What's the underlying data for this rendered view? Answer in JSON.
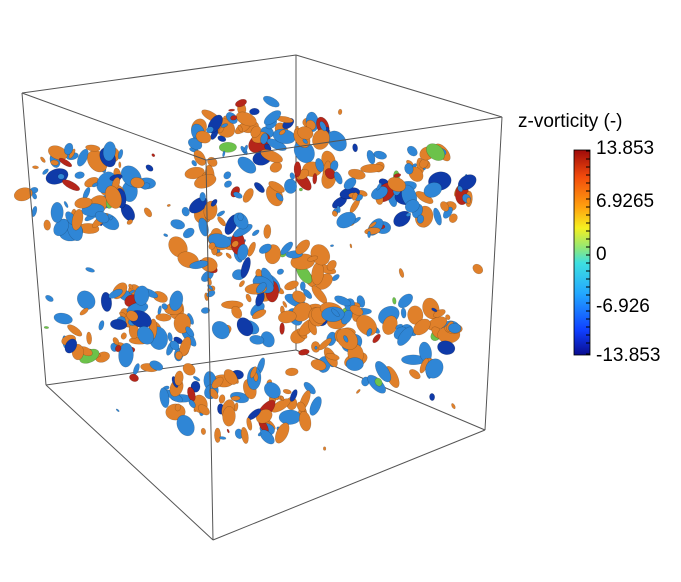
{
  "legend": {
    "title": "z-vorticity (-)",
    "max_label": "13.853",
    "upper_label": "6.9265",
    "mid_label": "0",
    "lower_label": "-6.926",
    "min_label": "-13.853",
    "colors": [
      "#0a0c8f",
      "#0f3fff",
      "#23a8ff",
      "#3ee0e0",
      "#8ee87a",
      "#f5f020",
      "#ffa20f",
      "#f24b0c",
      "#9e0a0a"
    ]
  },
  "scene": {
    "positive_color": "#e0802a",
    "negative_color": "#2f86d6",
    "extreme_positive_color": "#b5261a",
    "extreme_negative_color": "#0f3aa8",
    "neutral_color": "#6cc24a"
  }
}
